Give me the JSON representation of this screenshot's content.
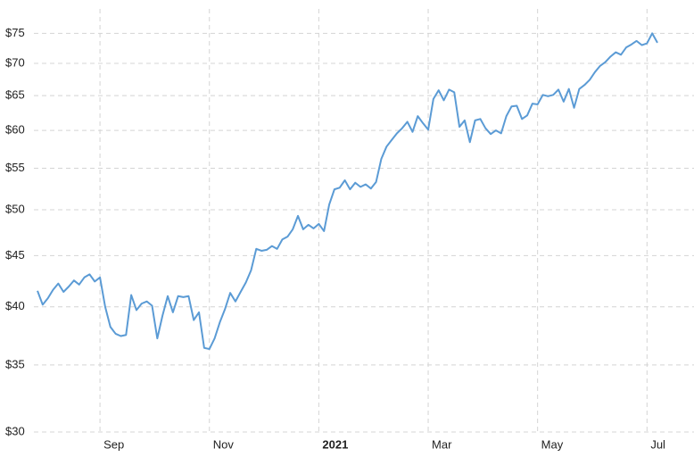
{
  "chart_data": {
    "type": "line",
    "log_scale": true,
    "grid": true,
    "color": "#5b9bd5",
    "categories": [
      null,
      null,
      null,
      null,
      null,
      null,
      null,
      null,
      null,
      null,
      null,
      null,
      "Sep",
      null,
      null,
      null,
      null,
      null,
      null,
      null,
      null,
      null,
      null,
      null,
      null,
      null,
      null,
      null,
      null,
      null,
      null,
      null,
      null,
      "Nov",
      null,
      null,
      null,
      null,
      null,
      null,
      null,
      null,
      null,
      null,
      null,
      null,
      null,
      null,
      null,
      null,
      null,
      null,
      null,
      null,
      "2021",
      null,
      null,
      null,
      null,
      null,
      null,
      null,
      null,
      null,
      null,
      null,
      null,
      null,
      null,
      null,
      null,
      null,
      null,
      null,
      null,
      "Mar",
      null,
      null,
      null,
      null,
      null,
      null,
      null,
      null,
      null,
      null,
      null,
      null,
      null,
      null,
      null,
      null,
      null,
      null,
      null,
      null,
      "May",
      null,
      null,
      null,
      null,
      null,
      null,
      null,
      null,
      null,
      null,
      null,
      null,
      null,
      null,
      null,
      null,
      null,
      null,
      null,
      null,
      "Jul",
      null,
      null
    ],
    "values": [
      41.5,
      40.2,
      40.8,
      41.6,
      42.2,
      41.4,
      41.9,
      42.5,
      42.1,
      42.8,
      43.1,
      42.4,
      42.8,
      40,
      38.2,
      37.6,
      37.4,
      37.5,
      41.1,
      39.7,
      40.3,
      40.5,
      40.1,
      37.2,
      39.2,
      41,
      39.5,
      41,
      40.9,
      41,
      38.8,
      39.5,
      36.4,
      36.3,
      37.2,
      38.6,
      39.8,
      41.3,
      40.5,
      41.4,
      42.3,
      43.5,
      45.7,
      45.5,
      45.6,
      46,
      45.7,
      46.7,
      47,
      47.8,
      49.3,
      47.8,
      48.3,
      47.9,
      48.4,
      47.6,
      50.6,
      52.4,
      52.6,
      53.5,
      52.4,
      53.2,
      52.7,
      53,
      52.5,
      53.3,
      56.2,
      57.8,
      58.7,
      59.6,
      60.3,
      61.2,
      59.8,
      62,
      61,
      60.1,
      64.5,
      65.8,
      64.3,
      65.9,
      65.5,
      60.5,
      61.4,
      58.4,
      61.4,
      61.6,
      60.3,
      59.5,
      60,
      59.6,
      62,
      63.4,
      63.5,
      61.6,
      62.1,
      63.8,
      63.7,
      65.1,
      64.9,
      65.1,
      65.9,
      64.1,
      66,
      63.2,
      66,
      66.6,
      67.4,
      68.6,
      69.6,
      70.2,
      71.1,
      71.8,
      71.4,
      72.6,
      73.1,
      73.7,
      73,
      73.3,
      75,
      73.4
    ],
    "ylim": [
      30,
      79
    ],
    "yticks": [
      {
        "value": 30,
        "label": "$30"
      },
      {
        "value": 35,
        "label": "$35"
      },
      {
        "value": 40,
        "label": "$40"
      },
      {
        "value": 45,
        "label": "$45"
      },
      {
        "value": 50,
        "label": "$50"
      },
      {
        "value": 55,
        "label": "$55"
      },
      {
        "value": 60,
        "label": "$60"
      },
      {
        "value": 65,
        "label": "$65"
      },
      {
        "value": 70,
        "label": "$70"
      },
      {
        "value": 75,
        "label": "$75"
      }
    ]
  }
}
